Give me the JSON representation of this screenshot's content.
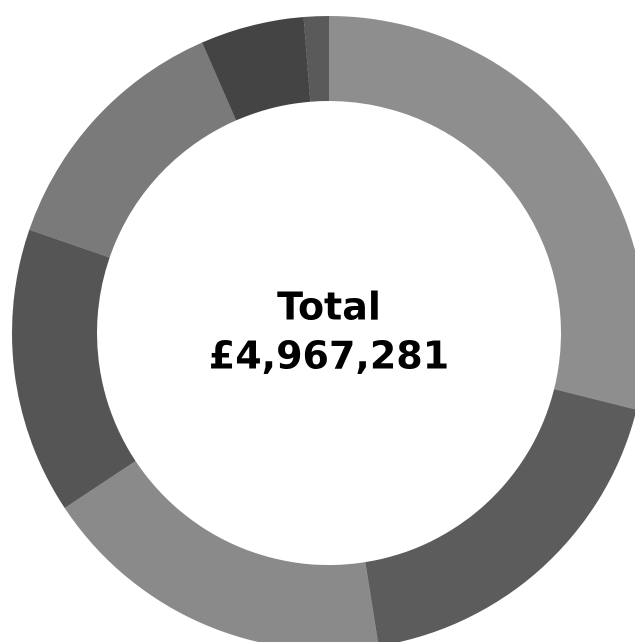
{
  "chart_data": {
    "type": "pie",
    "donut": true,
    "center_label": "Total",
    "center_value": "£4,967,281",
    "values": [
      1435108,
      924355,
      903758,
      724395,
      654030,
      262162,
      63473
    ],
    "colors": [
      "#8e8e8e",
      "#5c5c5c",
      "#8a8a8a",
      "#555555",
      "#7a7a7a",
      "#444444",
      "#5a5a5a"
    ]
  }
}
